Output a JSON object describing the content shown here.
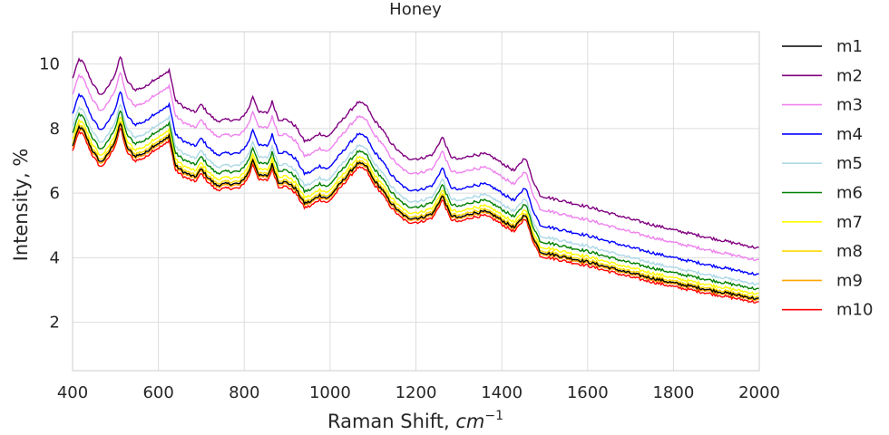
{
  "chart_data": {
    "type": "line",
    "title": "Honey",
    "xlabel": "Raman Shift, ",
    "xlabel_math": "cm",
    "xlabel_sup": "−1",
    "ylabel": "Intensity, %",
    "xlim": [
      400,
      2000
    ],
    "ylim": [
      0.5,
      11.0
    ],
    "xticks": [
      400,
      600,
      800,
      1000,
      1200,
      1400,
      1600,
      1800,
      2000
    ],
    "yticks": [
      2,
      4,
      6,
      8,
      10
    ],
    "grid": true,
    "legend_position": "right",
    "baseline_shape": [
      [
        400,
        7.3
      ],
      [
        415,
        7.9
      ],
      [
        425,
        7.8
      ],
      [
        445,
        7.2
      ],
      [
        465,
        6.8
      ],
      [
        480,
        7.0
      ],
      [
        500,
        7.5
      ],
      [
        512,
        8.05
      ],
      [
        525,
        7.3
      ],
      [
        545,
        7.0
      ],
      [
        570,
        7.1
      ],
      [
        585,
        7.3
      ],
      [
        600,
        7.4
      ],
      [
        615,
        7.5
      ],
      [
        625,
        7.65
      ],
      [
        640,
        6.7
      ],
      [
        660,
        6.5
      ],
      [
        685,
        6.35
      ],
      [
        700,
        6.6
      ],
      [
        715,
        6.35
      ],
      [
        735,
        6.1
      ],
      [
        760,
        6.15
      ],
      [
        790,
        6.15
      ],
      [
        810,
        6.5
      ],
      [
        820,
        6.9
      ],
      [
        835,
        6.4
      ],
      [
        855,
        6.4
      ],
      [
        865,
        6.75
      ],
      [
        880,
        6.2
      ],
      [
        900,
        6.2
      ],
      [
        920,
        6.0
      ],
      [
        940,
        5.55
      ],
      [
        955,
        5.6
      ],
      [
        975,
        5.8
      ],
      [
        995,
        5.7
      ],
      [
        1020,
        6.1
      ],
      [
        1045,
        6.5
      ],
      [
        1065,
        6.8
      ],
      [
        1085,
        6.7
      ],
      [
        1100,
        6.3
      ],
      [
        1120,
        6.0
      ],
      [
        1140,
        5.6
      ],
      [
        1160,
        5.3
      ],
      [
        1180,
        5.1
      ],
      [
        1210,
        5.1
      ],
      [
        1240,
        5.25
      ],
      [
        1262,
        5.8
      ],
      [
        1280,
        5.2
      ],
      [
        1300,
        5.1
      ],
      [
        1330,
        5.25
      ],
      [
        1360,
        5.3
      ],
      [
        1380,
        5.2
      ],
      [
        1410,
        4.95
      ],
      [
        1430,
        4.8
      ],
      [
        1455,
        5.25
      ],
      [
        1470,
        4.6
      ],
      [
        1490,
        4.05
      ],
      [
        1510,
        4.0
      ],
      [
        1600,
        3.75
      ],
      [
        1700,
        3.4
      ],
      [
        1800,
        3.1
      ],
      [
        1900,
        2.85
      ],
      [
        2000,
        2.6
      ]
    ],
    "series": [
      {
        "name": "m1",
        "color": "#000000",
        "offset": 0.15
      },
      {
        "name": "m2",
        "color": "#800080",
        "offset": 2.25
      },
      {
        "name": "m3",
        "color": "#ee82ee",
        "offset": 1.75
      },
      {
        "name": "m4",
        "color": "#0000ff",
        "offset": 1.15
      },
      {
        "name": "m5",
        "color": "#add8e6",
        "offset": 0.75
      },
      {
        "name": "m6",
        "color": "#008000",
        "offset": 0.55
      },
      {
        "name": "m7",
        "color": "#ffff00",
        "offset": 0.35
      },
      {
        "name": "m8",
        "color": "#ffd700",
        "offset": 0.22
      },
      {
        "name": "m9",
        "color": "#ffa500",
        "offset": 0.1
      },
      {
        "name": "m10",
        "color": "#ff0000",
        "offset": 0.0
      }
    ]
  }
}
